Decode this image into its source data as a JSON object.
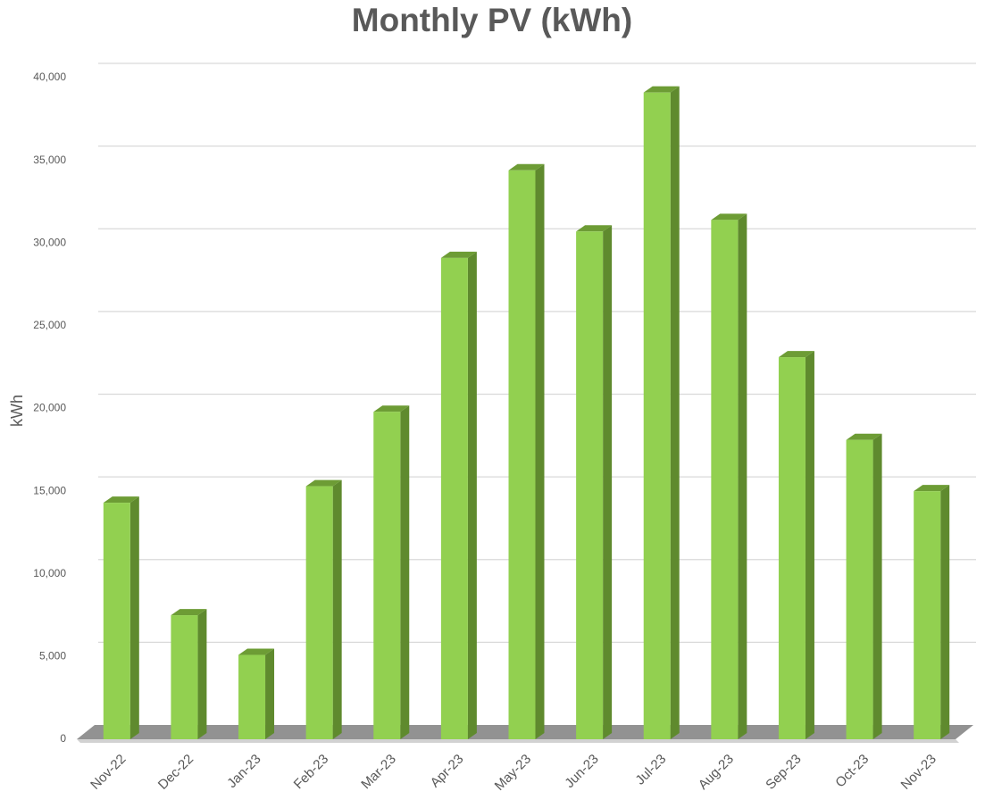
{
  "chart_data": {
    "type": "bar",
    "title": "Monthly PV (kWh)",
    "y_label": "kWh",
    "categories": [
      "Nov-22",
      "Dec-22",
      "Jan-23",
      "Feb-23",
      "Mar-23",
      "Apr-23",
      "May-23",
      "Jun-23",
      "Jul-23",
      "Aug-23",
      "Sep-23",
      "Oct-23",
      "Nov-23"
    ],
    "values": [
      14300,
      7500,
      5100,
      15300,
      19800,
      29100,
      34400,
      30700,
      39100,
      31400,
      23100,
      18100,
      15000
    ],
    "color": "#92d050",
    "ylim": [
      0,
      40000
    ],
    "yticks": [
      0,
      {
        "value": 5000,
        "label": "5,000"
      },
      {
        "value": 10000,
        "label": "10,000"
      },
      {
        "value": 15000,
        "label": "15,000"
      },
      {
        "value": 20000,
        "label": "20,000"
      },
      {
        "value": 25000,
        "label": "25,000"
      },
      {
        "value": 30000,
        "label": "30,000"
      },
      {
        "value": 35000,
        "label": "35,000"
      },
      {
        "value": 40000,
        "label": "40,000"
      }
    ],
    "grid": true
  }
}
